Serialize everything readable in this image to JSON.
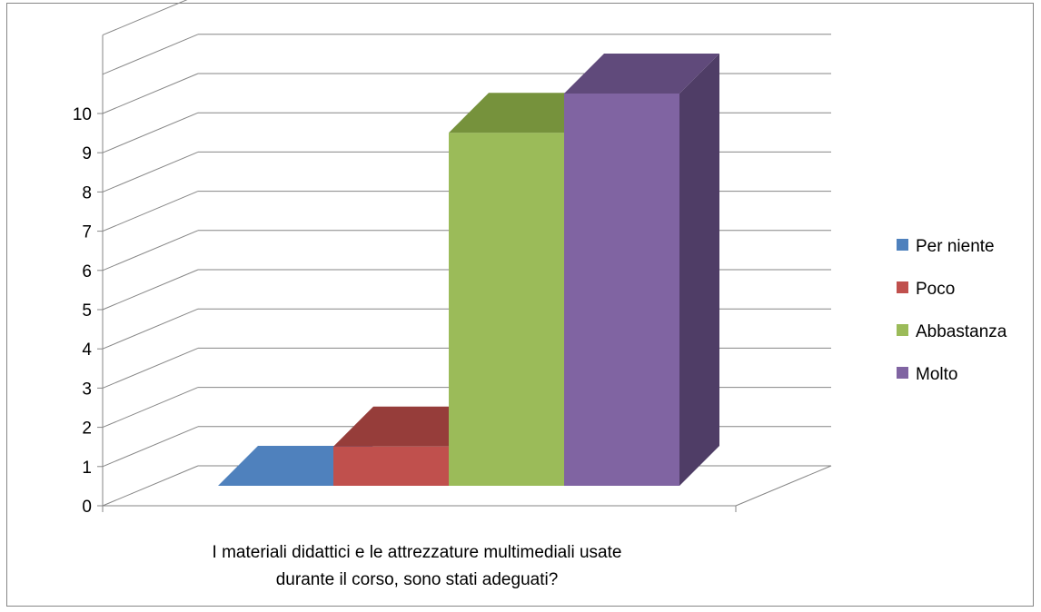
{
  "chart_data": {
    "type": "bar",
    "categories": [
      "I materiali didattici e le attrezzature multimediali usate durante il corso, sono stati adeguati?"
    ],
    "category_lines": [
      "I materiali didattici e le attrezzature multimediali usate",
      "durante il corso, sono stati adeguati?"
    ],
    "series": [
      {
        "name": "Per niente",
        "values": [
          0
        ],
        "color": "#4F81BD",
        "top_color": "#3D6590",
        "side_color": "#37577F"
      },
      {
        "name": "Poco",
        "values": [
          1
        ],
        "color": "#C0504D",
        "top_color": "#963D3A",
        "side_color": "#8B3A37"
      },
      {
        "name": "Abbastanza",
        "values": [
          9
        ],
        "color": "#9BBB59",
        "top_color": "#76923C",
        "side_color": "#6E8A38"
      },
      {
        "name": "Molto",
        "values": [
          10
        ],
        "color": "#8064A2",
        "top_color": "#604A7B",
        "side_color": "#4F3D66"
      }
    ],
    "y_ticks": [
      "0",
      "1",
      "2",
      "3",
      "4",
      "5",
      "6",
      "7",
      "8",
      "9",
      "10"
    ],
    "ylim": [
      0,
      12
    ],
    "grid": true,
    "legend_position": "right",
    "style": "3d-column"
  }
}
